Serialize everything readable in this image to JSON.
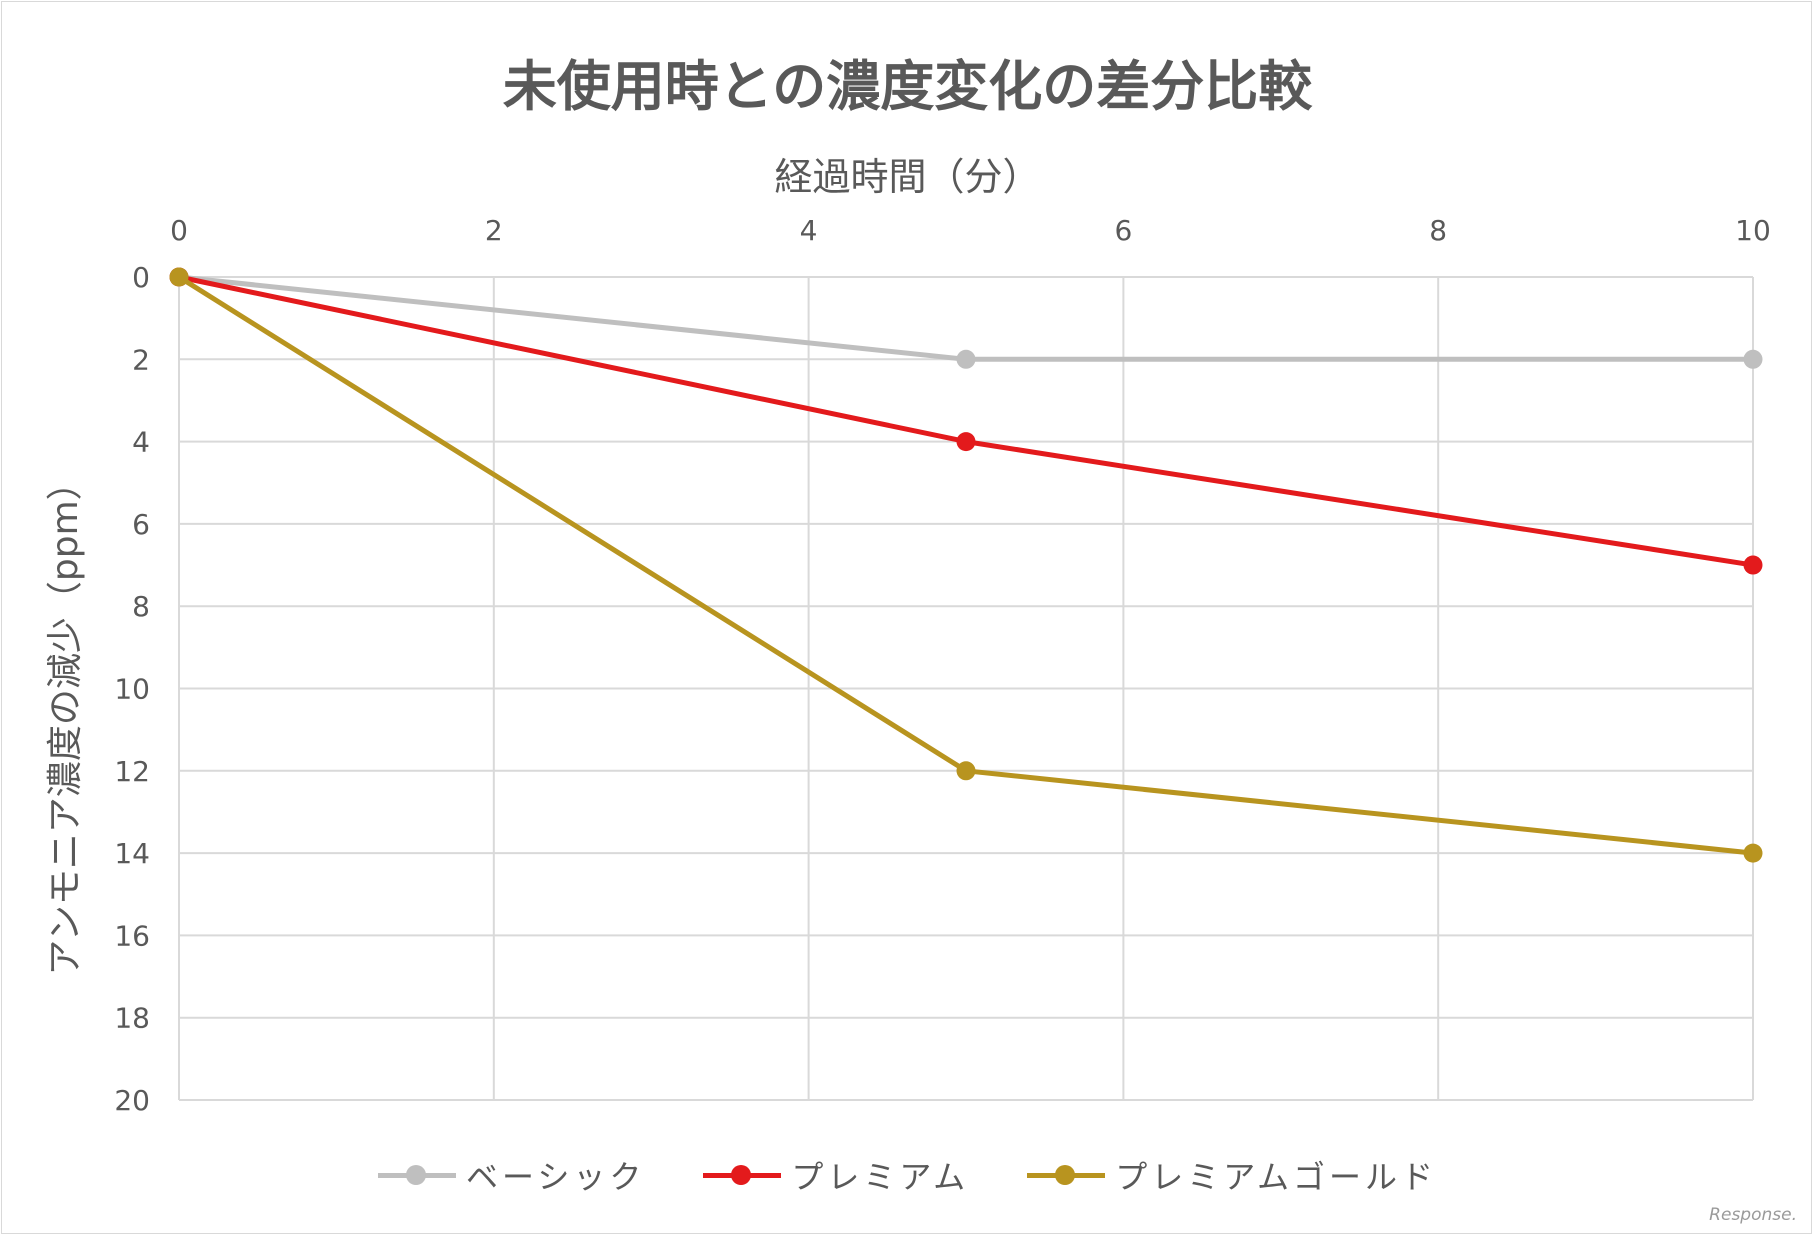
{
  "watermark": "Response.",
  "chart_data": {
    "type": "line",
    "title": "未使用時との濃度変化の差分比較",
    "xlabel": "経過時間（分）",
    "ylabel": "アンモニア濃度の減少（ppm）",
    "xlim": [
      0,
      10
    ],
    "ylim": [
      0,
      20
    ],
    "y_reversed": true,
    "x_axis_position": "top",
    "x_ticks": [
      0,
      2,
      4,
      6,
      8,
      10
    ],
    "y_ticks": [
      0,
      2,
      4,
      6,
      8,
      10,
      12,
      14,
      16,
      18,
      20
    ],
    "grid": true,
    "legend_position": "bottom",
    "series": [
      {
        "name": "ベーシック",
        "color": "#bfbfbf",
        "x": [
          0,
          5,
          10
        ],
        "y": [
          0,
          2,
          2
        ]
      },
      {
        "name": "プレミアム",
        "color": "#e31a1c",
        "x": [
          0,
          5,
          10
        ],
        "y": [
          0,
          4,
          7
        ]
      },
      {
        "name": "プレミアムゴールド",
        "color": "#b8941f",
        "x": [
          0,
          5,
          10
        ],
        "y": [
          0,
          12,
          14
        ]
      }
    ]
  }
}
